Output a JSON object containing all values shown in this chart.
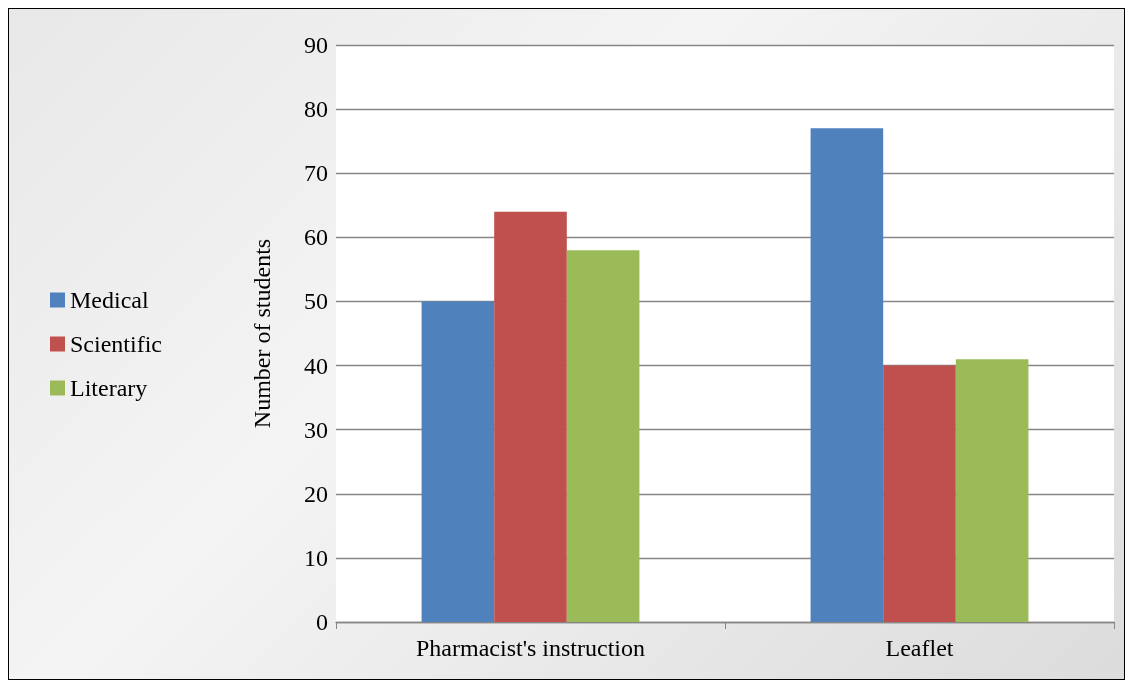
{
  "chart_data": {
    "type": "bar",
    "ylabel": "Number of students",
    "categories": [
      "Pharmacist's instruction",
      "Leaflet"
    ],
    "series": [
      {
        "name": "Medical",
        "color": "#4f81bd",
        "values": [
          50,
          77
        ]
      },
      {
        "name": "Scientific",
        "color": "#c0504d",
        "values": [
          64,
          40
        ]
      },
      {
        "name": "Literary",
        "color": "#9bbb59",
        "values": [
          58,
          41
        ]
      }
    ],
    "ylim": [
      0,
      90
    ],
    "yticks": [
      0,
      10,
      20,
      30,
      40,
      50,
      60,
      70,
      80,
      90
    ],
    "grid": "y",
    "legend": "left"
  }
}
